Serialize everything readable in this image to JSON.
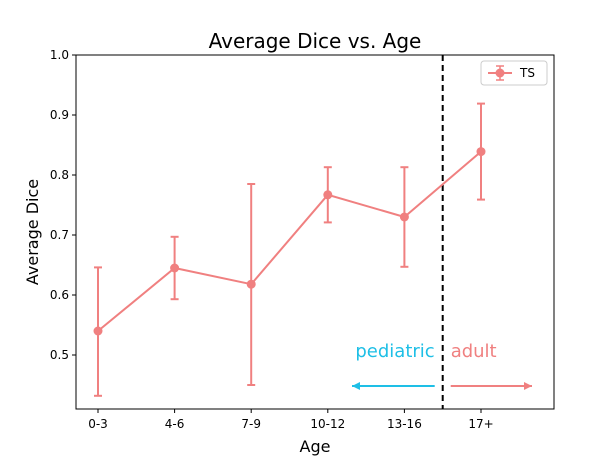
{
  "chart_data": {
    "type": "line",
    "title": "Average Dice vs. Age",
    "xlabel": "Age",
    "ylabel": "Average Dice",
    "categories": [
      "0-3",
      "4-6",
      "7-9",
      "10-12",
      "13-16",
      "17+"
    ],
    "ylim": [
      0.41,
      1.0
    ],
    "yticks": [
      "0.5",
      "0.6",
      "0.7",
      "0.8",
      "0.9",
      "1.0"
    ],
    "series": [
      {
        "name": "TS",
        "color": "#f08080",
        "values": [
          0.54,
          0.645,
          0.618,
          0.767,
          0.73,
          0.839
        ],
        "err_low": [
          0.432,
          0.593,
          0.45,
          0.721,
          0.647,
          0.759
        ],
        "err_high": [
          0.646,
          0.697,
          0.785,
          0.813,
          0.813,
          0.919
        ]
      }
    ],
    "divider_between": [
      "13-16",
      "17+"
    ],
    "annotations": [
      {
        "text": "pediatric",
        "color": "#1ebfe6",
        "arrow": "left"
      },
      {
        "text": "adult",
        "color": "#f08080",
        "arrow": "right"
      }
    ],
    "legend_position": "top-right",
    "grid": false
  }
}
